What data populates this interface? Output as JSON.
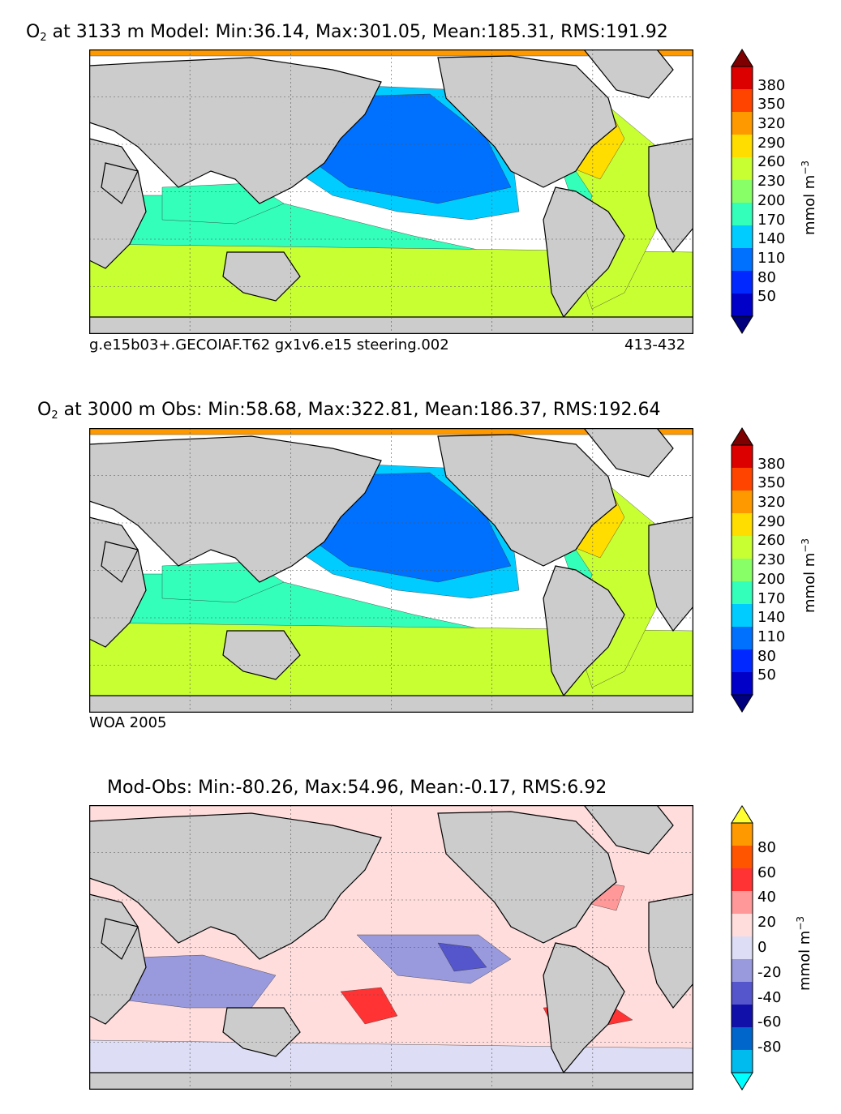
{
  "panels": [
    {
      "title_prefix": "O",
      "title_sub": "2",
      "title_rest": " at 3133 m Model: Min:36.14, Max:301.05, Mean:185.31, RMS:191.92",
      "footer_left": "g.e15b03+.GECOIAF.T62 gx1v6.e15 steering.002",
      "footer_right": "413-432",
      "unit": "mmol m",
      "unit_exp": "−3",
      "colorbar_ticks": [
        "380",
        "350",
        "320",
        "290",
        "260",
        "230",
        "200",
        "170",
        "140",
        "110",
        "80",
        "50"
      ]
    },
    {
      "title_prefix": "O",
      "title_sub": "2",
      "title_rest": " at 3000 m Obs: Min:58.68, Max:322.81, Mean:186.37, RMS:192.64",
      "footer_left": "WOA 2005",
      "footer_right": "",
      "unit": "mmol m",
      "unit_exp": "−3",
      "colorbar_ticks": [
        "380",
        "350",
        "320",
        "290",
        "260",
        "230",
        "200",
        "170",
        "140",
        "110",
        "80",
        "50"
      ]
    },
    {
      "title_prefix": "",
      "title_sub": "",
      "title_rest": "Mod-Obs: Min:-80.26, Max:54.96, Mean:-0.17, RMS:6.92",
      "footer_left": "",
      "footer_right": "",
      "unit": "mmol m",
      "unit_exp": "−3",
      "colorbar_ticks": [
        "80",
        "60",
        "40",
        "20",
        "0",
        "-20",
        "-40",
        "-60",
        "-80"
      ]
    }
  ],
  "chart_data": [
    {
      "type": "heatmap",
      "title": "O2 at 3133 m Model: Min:36.14, Max:301.05, Mean:185.31, RMS:191.92",
      "variable": "O2",
      "depth": "3133 m",
      "source": "Model",
      "stats": {
        "min": 36.14,
        "max": 301.05,
        "mean": 185.31,
        "rms": 191.92
      },
      "colorbar": {
        "label": "mmol m^-3",
        "ticks": [
          380,
          350,
          320,
          290,
          260,
          230,
          200,
          170,
          140,
          110,
          80,
          50
        ],
        "extend": "both"
      },
      "colors": [
        "#00007f",
        "#0000c8",
        "#0028ff",
        "#0070ff",
        "#00ccff",
        "#33ffbb",
        "#88ff66",
        "#c8ff33",
        "#ffdd00",
        "#ff9900",
        "#ff4400",
        "#dd0000",
        "#7f0000"
      ]
    },
    {
      "type": "heatmap",
      "title": "O2 at 3000 m Obs: Min:58.68, Max:322.81, Mean:186.37, RMS:192.64",
      "variable": "O2",
      "depth": "3000 m",
      "source": "Obs",
      "stats": {
        "min": 58.68,
        "max": 322.81,
        "mean": 186.37,
        "rms": 192.64
      },
      "colorbar": {
        "label": "mmol m^-3",
        "ticks": [
          380,
          350,
          320,
          290,
          260,
          230,
          200,
          170,
          140,
          110,
          80,
          50
        ],
        "extend": "both"
      },
      "colors": [
        "#00007f",
        "#0000c8",
        "#0028ff",
        "#0070ff",
        "#00ccff",
        "#33ffbb",
        "#88ff66",
        "#c8ff33",
        "#ffdd00",
        "#ff9900",
        "#ff4400",
        "#dd0000",
        "#7f0000"
      ]
    },
    {
      "type": "heatmap",
      "title": "Mod-Obs: Min:-80.26, Max:54.96, Mean:-0.17, RMS:6.92",
      "stats": {
        "min": -80.26,
        "max": 54.96,
        "mean": -0.17,
        "rms": 6.92
      },
      "colorbar": {
        "label": "mmol m^-3",
        "ticks": [
          80,
          60,
          40,
          20,
          0,
          -20,
          -40,
          -60,
          -80
        ],
        "extend": "both"
      },
      "colors": [
        "#00ffff",
        "#00bbee",
        "#0066cc",
        "#1111aa",
        "#5555cc",
        "#9999dd",
        "#ddddf5",
        "#ffdddd",
        "#ff9999",
        "#ff3333",
        "#ff5500",
        "#ff9900",
        "#ffff33"
      ]
    }
  ],
  "map_colors": {
    "land": "#cccccc",
    "missing": "#ffffff",
    "coast": "#000000",
    "grid": "#555555"
  }
}
